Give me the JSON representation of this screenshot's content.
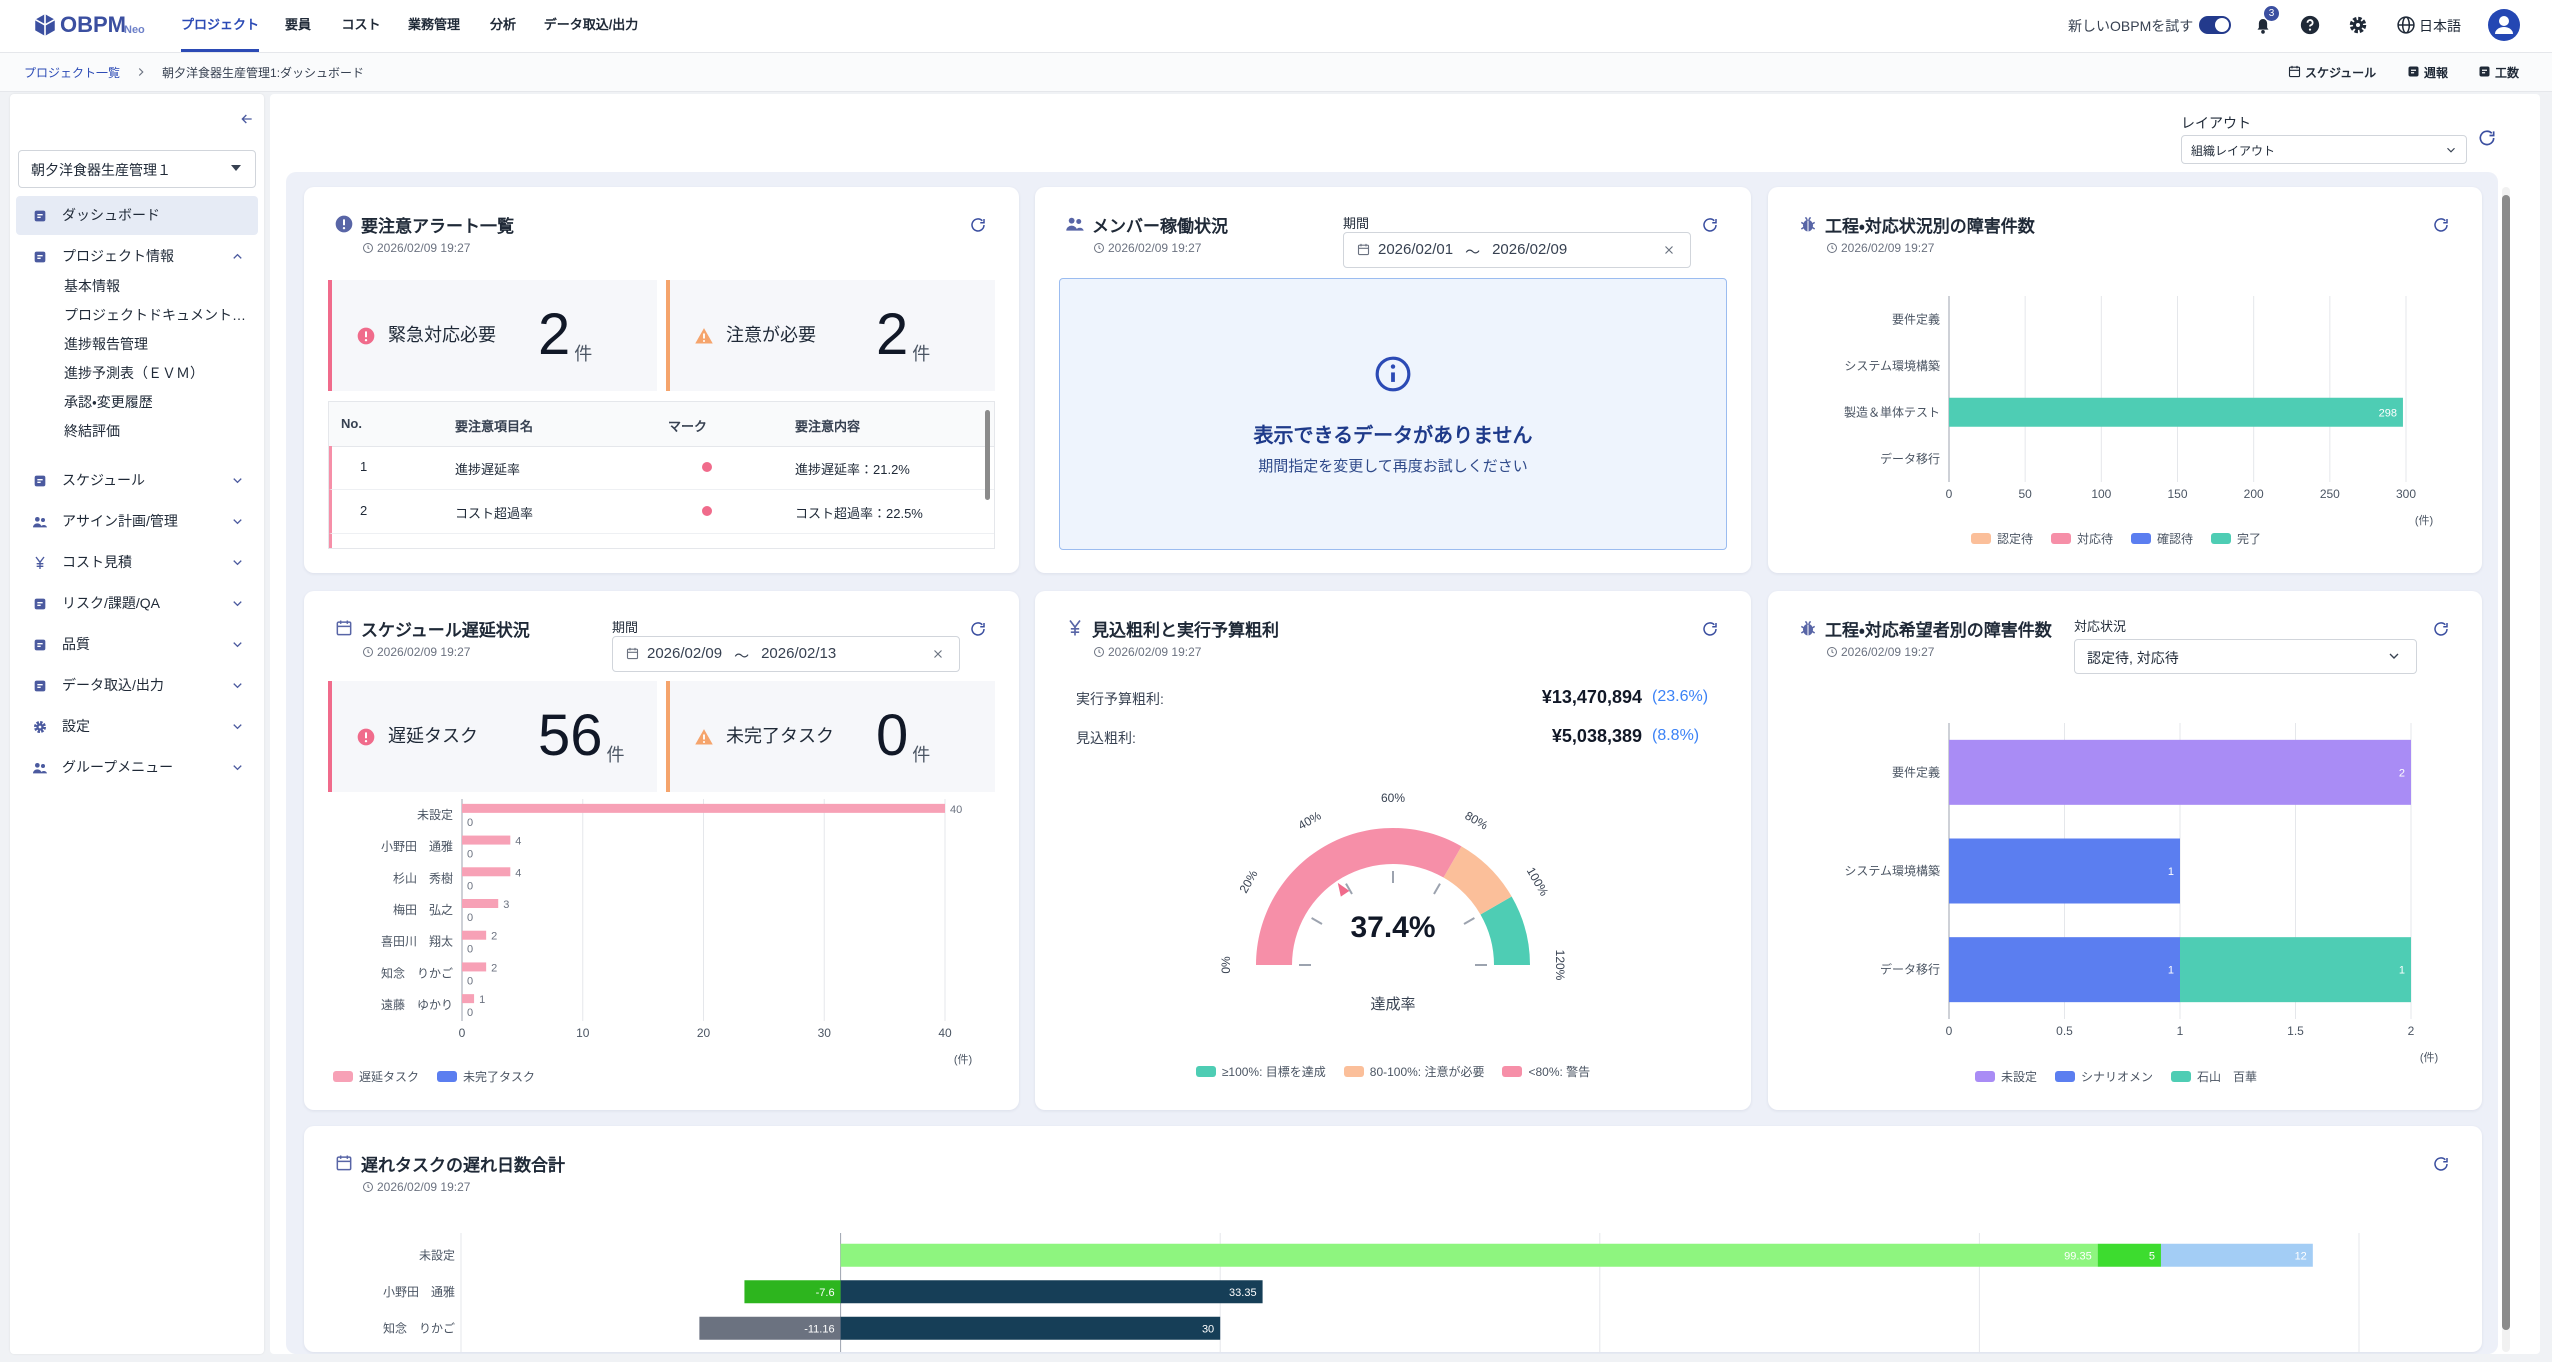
{
  "nav": {
    "logo": "OBPM",
    "logo_sub": "Neo",
    "tabs": [
      "プロジェクト",
      "要員",
      "コスト",
      "業務管理",
      "分析",
      "データ取込/出力"
    ],
    "active_tab": 0,
    "try_new": "新しいOBPMを試す",
    "notifications": 3,
    "language": "日本語"
  },
  "breadcrumb": {
    "items": [
      "プロジェクト一覧",
      "朝夕洋食器生産管理1:ダッシュボード"
    ],
    "actions": [
      "スケジュール",
      "週報",
      "工数"
    ]
  },
  "sidebar": {
    "project": "朝夕洋食器生産管理１",
    "menu": [
      {
        "label": "ダッシュボード",
        "active": true
      },
      {
        "label": "プロジェクト情報",
        "children": [
          "基本情報",
          "プロジェクトドキュメント…",
          "進捗報告管理",
          "進捗予測表（ＥＶＭ）",
          "承認・変更履歴",
          "終結評価"
        ]
      },
      {
        "label": "スケジュール"
      },
      {
        "label": "アサイン計画/管理"
      },
      {
        "label": "コスト見積"
      },
      {
        "label": "リスク/課題/QA"
      },
      {
        "label": "品質"
      },
      {
        "label": "データ取込/出力"
      },
      {
        "label": "設定"
      },
      {
        "label": "グループメニュー"
      }
    ]
  },
  "layout": {
    "label": "レイアウト",
    "value": "組織レイアウト"
  },
  "alert_card": {
    "title": "要注意アラート一覧",
    "updated": "2026/02/09 19:27",
    "summary": [
      {
        "label": "緊急対応必要",
        "count": 2,
        "unit": "件",
        "color": "#f06b8b"
      },
      {
        "label": "注意が必要",
        "count": 2,
        "unit": "件",
        "color": "#f5a46c"
      }
    ],
    "table": {
      "headers": [
        "No.",
        "要注意項目名",
        "マーク",
        "要注意内容"
      ],
      "rows": [
        {
          "no": "1",
          "item": "進捗遅延率",
          "content": "進捗遅延率：21.2%"
        },
        {
          "no": "2",
          "item": "コスト超過率",
          "content": "コスト超過率：22.5%"
        }
      ]
    }
  },
  "member_card": {
    "title": "メンバー稼働状況",
    "updated": "2026/02/09 19:27",
    "period": {
      "label": "期間",
      "from": "2026/02/01",
      "separator": "〜",
      "to": "2026/02/09"
    },
    "empty": {
      "title": "表示できるデータがありません",
      "message": "期間指定を変更して再度お試しください"
    }
  },
  "defect_card": {
    "title": "工程・対応状況別の障害件数",
    "updated": "2026/02/09 19:27",
    "chart_data": {
      "type": "bar",
      "orientation": "horizontal",
      "stacked": true,
      "categories": [
        "要件定義",
        "システム環境構築",
        "製造＆単体テスト",
        "データ移行"
      ],
      "series": [
        {
          "name": "認定待",
          "color": "#fbbf9a",
          "values": [
            0,
            0,
            0,
            0
          ]
        },
        {
          "name": "対応待",
          "color": "#f68fa8",
          "values": [
            0,
            0,
            0,
            0
          ]
        },
        {
          "name": "確認待",
          "color": "#5b7ef0",
          "values": [
            0,
            0,
            0,
            0
          ]
        },
        {
          "name": "完了",
          "color": "#4ecdb4",
          "values": [
            0,
            0,
            298,
            0
          ]
        }
      ],
      "xlim": [
        0,
        300
      ],
      "xticks": [
        0,
        50,
        100,
        150,
        200,
        250,
        300
      ],
      "xlabel": "(件)",
      "grid": true,
      "legend": "bottom"
    }
  },
  "schedule_card": {
    "title": "スケジュール遅延状況",
    "updated": "2026/02/09 19:27",
    "period": {
      "label": "期間",
      "from": "2026/02/09",
      "separator": "〜",
      "to": "2026/02/13"
    },
    "summary": [
      {
        "label": "遅延タスク",
        "count": 56,
        "unit": "件",
        "color": "#f06b8b"
      },
      {
        "label": "未完了タスク",
        "count": 0,
        "unit": "件",
        "color": "#f5a46c"
      }
    ],
    "chart_data": {
      "type": "bar",
      "orientation": "horizontal",
      "stacked": false,
      "categories": [
        "未設定",
        "小野田　通雅",
        "杉山　秀樹",
        "梅田　弘之",
        "喜田川　翔太",
        "知念　りかご",
        "遠藤　ゆかり"
      ],
      "series": [
        {
          "name": "遅延タスク",
          "color": "#f7a1b6",
          "values": [
            40,
            4,
            4,
            3,
            2,
            2,
            1
          ]
        },
        {
          "name": "未完了タスク",
          "color": "#5b7ef0",
          "values": [
            0,
            0,
            0,
            0,
            0,
            0,
            0
          ]
        }
      ],
      "xlim": [
        0,
        40
      ],
      "xticks": [
        0,
        10,
        20,
        30,
        40
      ],
      "xlabel": "(件)",
      "grid": true,
      "legend": "bottom-left"
    }
  },
  "profit_card": {
    "title": "見込粗利と実行予算粗利",
    "updated": "2026/02/09 19:27",
    "rows": [
      {
        "label": "実行予算粗利:",
        "amount": "¥13,470,894",
        "ratio": "(23.6%)"
      },
      {
        "label": "見込粗利:",
        "amount": "¥5,038,389",
        "ratio": "(8.8%)"
      }
    ],
    "chart_data": {
      "type": "gauge",
      "value": 37.4,
      "value_label": "37.4%",
      "label": "達成率",
      "ylim": [
        0,
        120
      ],
      "yticks": [
        {
          "value": 0,
          "label": "0%"
        },
        {
          "value": 20,
          "label": "20%"
        },
        {
          "value": 40,
          "label": "40%"
        },
        {
          "value": 60,
          "label": "60%"
        },
        {
          "value": 80,
          "label": "80%"
        },
        {
          "value": 100,
          "label": "100%"
        },
        {
          "value": 120,
          "label": "120%"
        }
      ],
      "bands": [
        {
          "name": "≥100%: 目標を達成",
          "color": "#4ecdb4",
          "from": 100,
          "to": 120
        },
        {
          "name": "80-100%: 注意が必要",
          "color": "#fbbf9a",
          "from": 80,
          "to": 100
        },
        {
          "name": "<80%: 警告",
          "color": "#f68fa8",
          "from": 0,
          "to": 80
        }
      ],
      "legend": "bottom"
    }
  },
  "assignee_card": {
    "title": "工程・対応希望者別の障害件数",
    "updated": "2026/02/09 19:27",
    "filter": {
      "label": "対応状況",
      "value": "認定待, 対応待"
    },
    "chart_data": {
      "type": "bar",
      "orientation": "horizontal",
      "stacked": true,
      "categories": [
        "要件定義",
        "システム環境構築",
        "データ移行"
      ],
      "series": [
        {
          "name": "未設定",
          "color": "#a98cf5",
          "values": [
            2,
            0,
            0
          ]
        },
        {
          "name": "シナリオメン",
          "color": "#5b7ef0",
          "values": [
            0,
            1,
            1
          ]
        },
        {
          "name": "石山　百華",
          "color": "#4ecdb4",
          "values": [
            0,
            0,
            1
          ]
        }
      ],
      "xlim": [
        0,
        2
      ],
      "xticks": [
        0,
        0.5,
        1,
        1.5,
        2
      ],
      "xlabel": "(件)",
      "grid": true,
      "legend": "bottom"
    }
  },
  "delay_days_card": {
    "title": "遅れタスクの遅れ日数合計",
    "updated": "2026/02/09 19:27",
    "chart_data": {
      "type": "diverging-bar",
      "orientation": "horizontal",
      "categories": [
        "未設定",
        "小野田　通雅",
        "知念　りかご"
      ],
      "segments": [
        [
          {
            "value": 99.35,
            "color": "#8ef57f"
          },
          {
            "value": 5,
            "color": "#3ddc2f"
          },
          {
            "value": 12,
            "color": "#a3cdf5"
          }
        ],
        [
          {
            "value": -7.6,
            "color": "#2db51e"
          },
          {
            "value": 33.35,
            "color": "#163e57"
          }
        ],
        [
          {
            "value": -11.16,
            "color": "#6b7280"
          },
          {
            "value": 30,
            "color": "#163e57"
          }
        ]
      ],
      "xlim": [
        -30,
        120
      ],
      "xgrid": [
        -30,
        0,
        30,
        60,
        90,
        120
      ]
    }
  }
}
